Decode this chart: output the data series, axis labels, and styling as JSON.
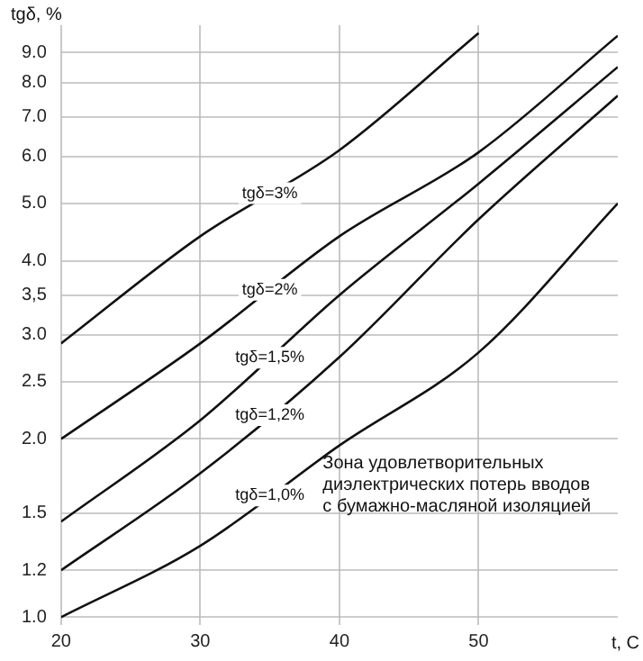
{
  "chart_data": {
    "type": "line",
    "xlabel": "t, C",
    "ylabel": "tgδ, %",
    "log": "y",
    "x": [
      20,
      30,
      40,
      50,
      60
    ],
    "series": [
      {
        "name": "tgδ=3%",
        "color": "#111111",
        "values": [
          2.9,
          4.4,
          6.15,
          9.7,
          null
        ]
      },
      {
        "name": "tgδ=2%",
        "color": "#111111",
        "values": [
          2.0,
          2.9,
          4.4,
          6.1,
          9.6
        ]
      },
      {
        "name": "tgδ=1,5%",
        "color": "#111111",
        "values": [
          1.45,
          2.15,
          3.5,
          5.4,
          8.5
        ]
      },
      {
        "name": "tgδ=1,2%",
        "color": "#111111",
        "values": [
          1.2,
          1.75,
          2.75,
          4.7,
          7.6
        ]
      },
      {
        "name": "tgδ=1,0%",
        "color": "#111111",
        "values": [
          1.0,
          1.32,
          1.95,
          2.8,
          5.0
        ]
      }
    ],
    "xlim": [
      20,
      60
    ],
    "xticks": [
      20,
      30,
      40,
      50
    ],
    "ylim": [
      0.97,
      10
    ],
    "yticks": [
      {
        "value": 1,
        "label": "1.0"
      },
      {
        "value": 1.2,
        "label": "1.2"
      },
      {
        "value": 1.5,
        "label": "1.5"
      },
      {
        "value": 2,
        "label": "2.0"
      },
      {
        "value": 2.5,
        "label": "2.5"
      },
      {
        "value": 3,
        "label": "3.0"
      },
      {
        "value": 3.5,
        "label": "3,5"
      },
      {
        "value": 4,
        "label": "4.0"
      },
      {
        "value": 5,
        "label": "5.0"
      },
      {
        "value": 6,
        "label": "6.0"
      },
      {
        "value": 7,
        "label": "7.0"
      },
      {
        "value": 8,
        "label": "8.0"
      },
      {
        "value": 9,
        "label": "9.0"
      }
    ],
    "grid": true,
    "legend": false,
    "marker": "none",
    "line_style": "solid",
    "annotations": [
      "Зона удовлетворительных\nдиэлектрических потерь вводов\nс бумажно-масляной изоляцией"
    ]
  }
}
